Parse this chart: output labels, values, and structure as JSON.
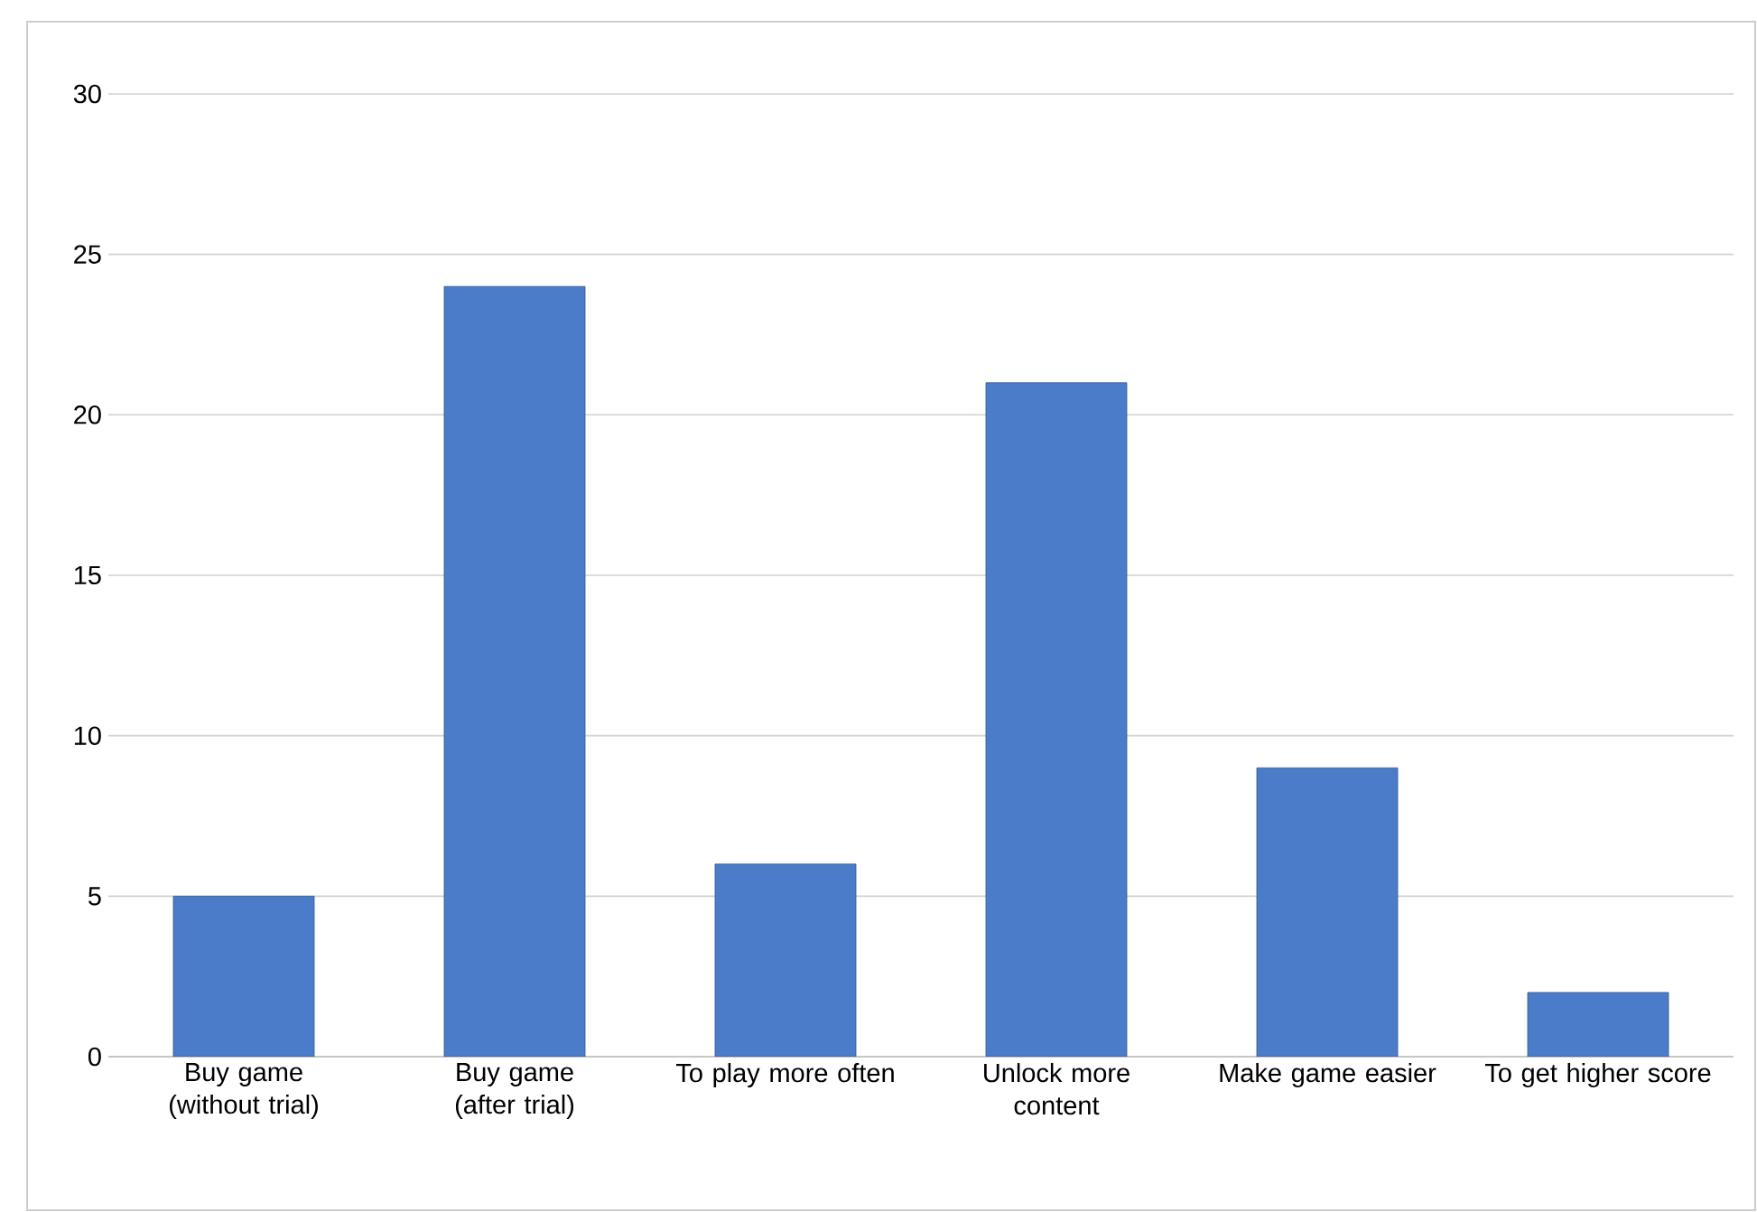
{
  "chart_data": {
    "type": "bar",
    "categories": [
      "Buy game (without trial)",
      "Buy game (after trial)",
      "To play more often",
      "Unlock more content",
      "Make game easier",
      "To get higher score"
    ],
    "values": [
      5,
      24,
      6,
      21,
      9,
      2
    ],
    "color": "#4a7cc9",
    "ylim": [
      0,
      30
    ],
    "yticks": [
      0,
      5,
      10,
      15,
      20,
      25,
      30
    ],
    "grid": "y"
  }
}
